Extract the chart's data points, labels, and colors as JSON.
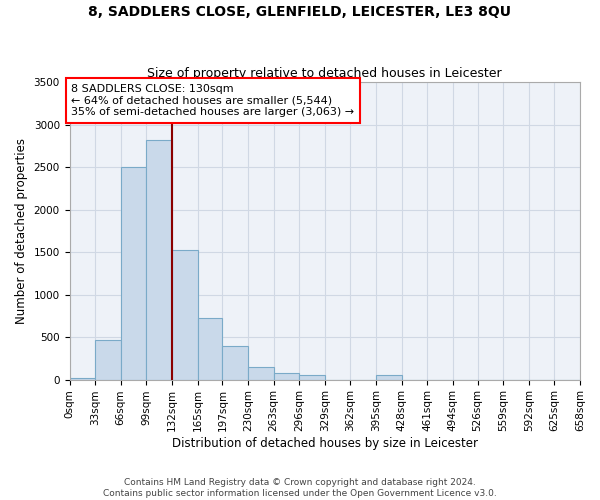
{
  "title": "8, SADDLERS CLOSE, GLENFIELD, LEICESTER, LE3 8QU",
  "subtitle": "Size of property relative to detached houses in Leicester",
  "xlabel": "Distribution of detached houses by size in Leicester",
  "ylabel": "Number of detached properties",
  "bar_color": "#c9d9ea",
  "bar_edge_color": "#7aaac8",
  "background_color": "#eef2f8",
  "grid_color": "#d0d8e4",
  "annotation_text": "8 SADDLERS CLOSE: 130sqm\n← 64% of detached houses are smaller (5,544)\n35% of semi-detached houses are larger (3,063) →",
  "vline_x": 132,
  "bin_edges": [
    0,
    33,
    66,
    99,
    132,
    165,
    197,
    230,
    263,
    296,
    329,
    362,
    395,
    428,
    461,
    494,
    526,
    559,
    592,
    625,
    658
  ],
  "bin_labels": [
    "0sqm",
    "33sqm",
    "66sqm",
    "99sqm",
    "132sqm",
    "165sqm",
    "197sqm",
    "230sqm",
    "263sqm",
    "296sqm",
    "329sqm",
    "362sqm",
    "395sqm",
    "428sqm",
    "461sqm",
    "494sqm",
    "526sqm",
    "559sqm",
    "592sqm",
    "625sqm",
    "658sqm"
  ],
  "bar_heights": [
    20,
    470,
    2500,
    2820,
    1530,
    720,
    390,
    150,
    75,
    55,
    0,
    0,
    50,
    0,
    0,
    0,
    0,
    0,
    0,
    0
  ],
  "ylim": [
    0,
    3500
  ],
  "yticks": [
    0,
    500,
    1000,
    1500,
    2000,
    2500,
    3000,
    3500
  ],
  "footer": "Contains HM Land Registry data © Crown copyright and database right 2024.\nContains public sector information licensed under the Open Government Licence v3.0.",
  "title_fontsize": 10,
  "subtitle_fontsize": 9,
  "label_fontsize": 8.5,
  "tick_fontsize": 7.5,
  "footer_fontsize": 6.5,
  "annot_fontsize": 8
}
